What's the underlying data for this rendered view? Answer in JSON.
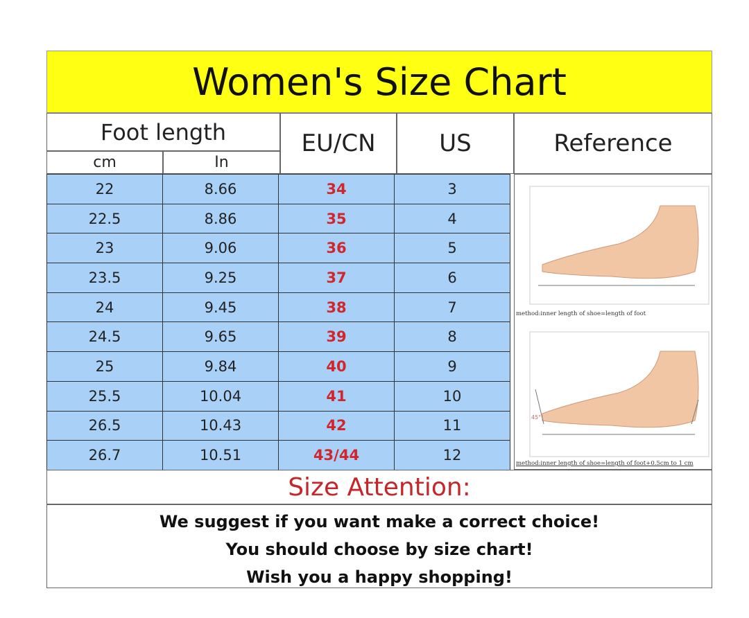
{
  "title": "Women's Size Chart",
  "headers": {
    "foot_length": "Foot length",
    "cm": "cm",
    "in": "In",
    "eu": "EU/CN",
    "us": "US",
    "reference": "Reference"
  },
  "rows": [
    {
      "cm": "22",
      "in": "8.66",
      "eu": "34",
      "us": "3"
    },
    {
      "cm": "22.5",
      "in": "8.86",
      "eu": "35",
      "us": "4"
    },
    {
      "cm": "23",
      "in": "9.06",
      "eu": "36",
      "us": "5"
    },
    {
      "cm": "23.5",
      "in": "9.25",
      "eu": "37",
      "us": "6"
    },
    {
      "cm": "24",
      "in": "9.45",
      "eu": "38",
      "us": "7"
    },
    {
      "cm": "24.5",
      "in": "9.65",
      "eu": "39",
      "us": "8"
    },
    {
      "cm": "25",
      "in": "9.84",
      "eu": "40",
      "us": "9"
    },
    {
      "cm": "25.5",
      "in": "10.04",
      "eu": "41",
      "us": "10"
    },
    {
      "cm": "26.5",
      "in": "10.43",
      "eu": "42",
      "us": "11"
    },
    {
      "cm": "26.7",
      "in": "10.51",
      "eu": "43/44",
      "us": "12"
    }
  ],
  "reference": {
    "caption1": "method:inner length of shoe=length of foot",
    "caption2": "method:inner length of shoe=length of foot+0.5cm to 1 cm",
    "angle_label": "45°"
  },
  "attention": "Size Attention:",
  "messages": [
    "We suggest if you want make a correct choice!",
    "You should choose by size chart!",
    "Wish you a happy shopping!"
  ],
  "colors": {
    "title_bg": "#ffff14",
    "row_bg": "#a9d1f7",
    "eu_text": "#d0262c",
    "attention_text": "#c4262a"
  }
}
